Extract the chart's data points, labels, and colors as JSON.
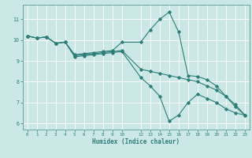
{
  "xlabel": "Humidex (Indice chaleur)",
  "background_color": "#cce8e6",
  "grid_color": "#ffffff",
  "line_color": "#2d7d78",
  "series": [
    {
      "x": [
        0,
        1,
        2,
        3,
        4,
        5,
        6,
        7,
        8,
        9,
        10,
        12,
        13,
        14,
        15,
        16,
        17,
        18,
        19,
        20,
        21,
        22,
        23
      ],
      "y": [
        10.2,
        10.1,
        10.15,
        9.85,
        9.9,
        9.3,
        9.35,
        9.4,
        9.45,
        9.5,
        9.9,
        9.9,
        10.5,
        11.0,
        11.35,
        10.4,
        8.3,
        8.25,
        8.1,
        7.8,
        7.3,
        6.8,
        6.4
      ]
    },
    {
      "x": [
        0,
        1,
        2,
        3,
        4,
        5,
        6,
        7,
        8,
        9,
        10,
        12,
        13,
        14,
        15,
        16,
        17,
        18,
        19,
        20,
        21,
        22,
        23
      ],
      "y": [
        10.2,
        10.1,
        10.15,
        9.85,
        9.9,
        9.25,
        9.3,
        9.35,
        9.4,
        9.45,
        9.5,
        8.6,
        8.5,
        8.4,
        8.3,
        8.2,
        8.1,
        8.0,
        7.8,
        7.6,
        7.3,
        6.9,
        6.4
      ]
    },
    {
      "x": [
        0,
        1,
        2,
        3,
        4,
        5,
        6,
        7,
        8,
        9,
        10,
        12,
        13,
        14,
        15,
        16,
        17,
        18,
        19,
        20,
        21,
        22,
        23
      ],
      "y": [
        10.2,
        10.1,
        10.15,
        9.85,
        9.9,
        9.2,
        9.25,
        9.3,
        9.35,
        9.4,
        9.45,
        8.2,
        7.8,
        7.3,
        6.1,
        6.4,
        7.0,
        7.4,
        7.2,
        7.0,
        6.7,
        6.5,
        6.4
      ]
    }
  ],
  "xlim": [
    -0.5,
    23.5
  ],
  "ylim": [
    5.7,
    11.7
  ],
  "xticks": [
    0,
    1,
    2,
    3,
    4,
    5,
    6,
    7,
    8,
    9,
    10,
    12,
    13,
    14,
    15,
    16,
    17,
    18,
    19,
    20,
    21,
    22,
    23
  ],
  "yticks": [
    6,
    7,
    8,
    9,
    10,
    11
  ],
  "marker": "D",
  "markersize": 1.8,
  "linewidth": 0.8
}
